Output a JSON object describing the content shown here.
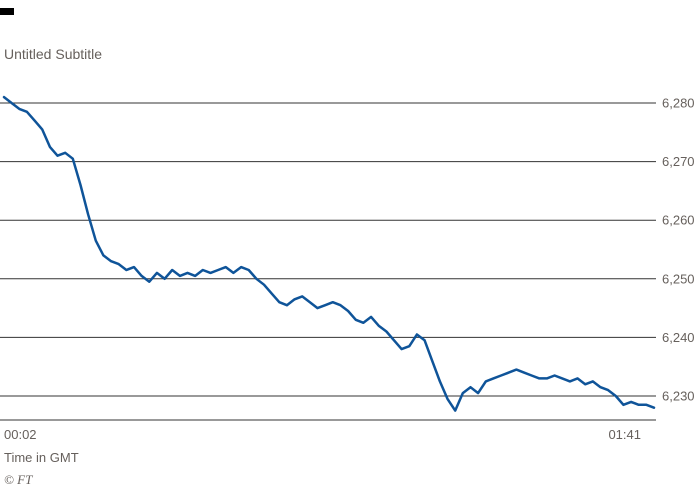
{
  "page": {
    "background": "#ffffff"
  },
  "header": {
    "subtitle": "Untitled Subtitle"
  },
  "footer": {
    "xaxis_caption": "Time in GMT",
    "credit": "© FT"
  },
  "chart_data": {
    "type": "line",
    "title": "",
    "subtitle": "Untitled Subtitle",
    "xlabel": "Time in GMT",
    "ylabel": "",
    "x_tick_labels": [
      "00:02",
      "01:41"
    ],
    "y_ticks": [
      6280,
      6270,
      6260,
      6250,
      6240,
      6230
    ],
    "y_tick_labels": [
      "6,280",
      "6,270",
      "6,260",
      "6,250",
      "6,240",
      "6,230"
    ],
    "ylim": [
      6225.5,
      6281.5
    ],
    "grid": true,
    "legend": "none",
    "line_color": "#0f5499",
    "grid_color": "#333333",
    "series": [
      {
        "name": "index-level",
        "values": [
          6281.0,
          6280.0,
          6279.0,
          6278.5,
          6277.0,
          6275.5,
          6272.5,
          6271.0,
          6271.5,
          6270.5,
          6266.0,
          6261.0,
          6256.5,
          6254.0,
          6253.0,
          6252.5,
          6251.5,
          6252.0,
          6250.5,
          6249.5,
          6251.0,
          6250.0,
          6251.5,
          6250.5,
          6251.0,
          6250.5,
          6251.5,
          6251.0,
          6251.5,
          6252.0,
          6251.0,
          6252.0,
          6251.5,
          6250.0,
          6249.0,
          6247.5,
          6246.0,
          6245.5,
          6246.5,
          6247.0,
          6246.0,
          6245.0,
          6245.5,
          6246.0,
          6245.5,
          6244.5,
          6243.0,
          6242.5,
          6243.5,
          6242.0,
          6241.0,
          6239.5,
          6238.0,
          6238.5,
          6240.5,
          6239.5,
          6236.0,
          6232.5,
          6229.5,
          6227.5,
          6230.5,
          6231.5,
          6230.5,
          6232.5,
          6233.0,
          6233.5,
          6234.0,
          6234.5,
          6234.0,
          6233.5,
          6233.0,
          6233.0,
          6233.5,
          6233.0,
          6232.5,
          6233.0,
          6232.0,
          6232.5,
          6231.5,
          6231.0,
          6230.0,
          6228.5,
          6229.0,
          6228.5,
          6228.5,
          6228.0
        ]
      }
    ]
  }
}
